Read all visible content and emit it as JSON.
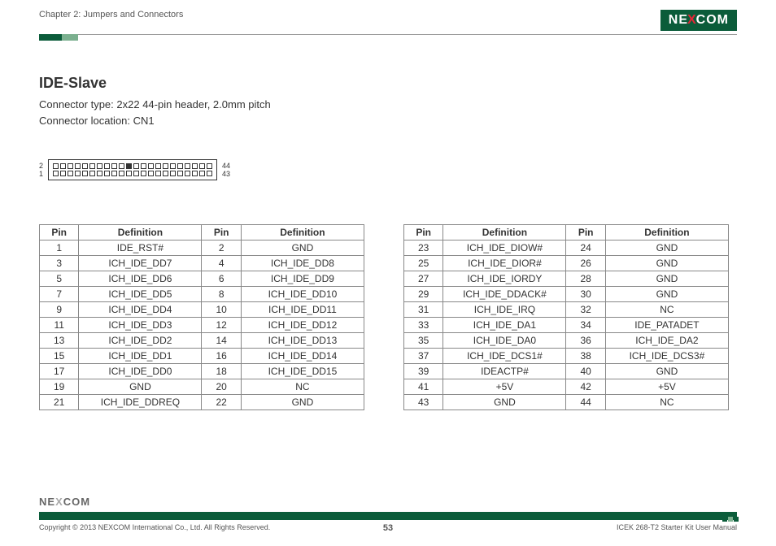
{
  "header": {
    "chapter": "Chapter 2: Jumpers and Connectors",
    "logo_pre": "NE",
    "logo_x": "X",
    "logo_post": "COM"
  },
  "section": {
    "title": "IDE-Slave",
    "conn_type": "Connector type: 2x22 44-pin header, 2.0mm pitch",
    "conn_loc": "Connector location: CN1"
  },
  "diagram": {
    "top_left": "2",
    "bot_left": "1",
    "top_right": "44",
    "bot_right": "43",
    "cols": 22,
    "filled_top_index": 10
  },
  "table_left": {
    "headers": [
      "Pin",
      "Definition",
      "Pin",
      "Definition"
    ],
    "rows": [
      [
        "1",
        "IDE_RST#",
        "2",
        "GND"
      ],
      [
        "3",
        "ICH_IDE_DD7",
        "4",
        "ICH_IDE_DD8"
      ],
      [
        "5",
        "ICH_IDE_DD6",
        "6",
        "ICH_IDE_DD9"
      ],
      [
        "7",
        "ICH_IDE_DD5",
        "8",
        "ICH_IDE_DD10"
      ],
      [
        "9",
        "ICH_IDE_DD4",
        "10",
        "ICH_IDE_DD11"
      ],
      [
        "11",
        "ICH_IDE_DD3",
        "12",
        "ICH_IDE_DD12"
      ],
      [
        "13",
        "ICH_IDE_DD2",
        "14",
        "ICH_IDE_DD13"
      ],
      [
        "15",
        "ICH_IDE_DD1",
        "16",
        "ICH_IDE_DD14"
      ],
      [
        "17",
        "ICH_IDE_DD0",
        "18",
        "ICH_IDE_DD15"
      ],
      [
        "19",
        "GND",
        "20",
        "NC"
      ],
      [
        "21",
        "ICH_IDE_DDREQ",
        "22",
        "GND"
      ]
    ]
  },
  "table_right": {
    "headers": [
      "Pin",
      "Definition",
      "Pin",
      "Definition"
    ],
    "rows": [
      [
        "23",
        "ICH_IDE_DIOW#",
        "24",
        "GND"
      ],
      [
        "25",
        "ICH_IDE_DIOR#",
        "26",
        "GND"
      ],
      [
        "27",
        "ICH_IDE_IORDY",
        "28",
        "GND"
      ],
      [
        "29",
        "ICH_IDE_DDACK#",
        "30",
        "GND"
      ],
      [
        "31",
        "ICH_IDE_IRQ",
        "32",
        "NC"
      ],
      [
        "33",
        "ICH_IDE_DA1",
        "34",
        "IDE_PATADET"
      ],
      [
        "35",
        "ICH_IDE_DA0",
        "36",
        "ICH_IDE_DA2"
      ],
      [
        "37",
        "ICH_IDE_DCS1#",
        "38",
        "ICH_IDE_DCS3#"
      ],
      [
        "39",
        "IDEACTP#",
        "40",
        "GND"
      ],
      [
        "41",
        "+5V",
        "42",
        "+5V"
      ],
      [
        "43",
        "GND",
        "44",
        "NC"
      ]
    ]
  },
  "footer": {
    "logo_pre": "NE",
    "logo_x": "X",
    "logo_post": "COM",
    "copyright": "Copyright © 2013 NEXCOM International Co., Ltd. All Rights Reserved.",
    "page": "53",
    "manual": "ICEK 268-T2 Starter Kit User Manual"
  }
}
